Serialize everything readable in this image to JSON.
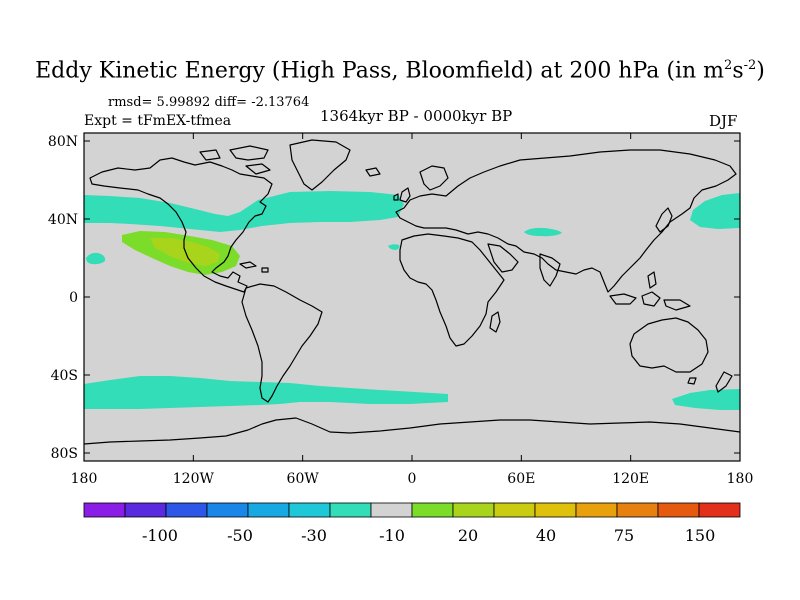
{
  "title": "Eddy Kinetic Energy (High Pass, Bloomfield) at 200 hPa (in m",
  "title_unit_m_exp": "2",
  "title_unit_s": "s",
  "title_unit_s_exp": "-2",
  "title_close": ")",
  "stats": "rmsd= 5.99892  diff= -2.13764",
  "expt": "Expt = tFmEX-tfmea",
  "period": "1364kyr BP - 0000kyr BP",
  "season": "DJF",
  "map": {
    "lat_labels": [
      "80N",
      "40N",
      "0",
      "40S",
      "80S"
    ],
    "lat_values": [
      80,
      40,
      0,
      -40,
      -80
    ],
    "lon_labels": [
      "180",
      "120W",
      "60W",
      "0",
      "60E",
      "120E",
      "180"
    ],
    "lon_values": [
      -180,
      -120,
      -60,
      0,
      60,
      120,
      180
    ],
    "background_color": "#d3d3d3",
    "anomaly_regions": [
      {
        "name": "north-pacific-jet-west",
        "level": "-10",
        "color": "#33ddb8"
      },
      {
        "name": "north-america-atlantic-jet",
        "level": "-10",
        "color": "#33ddb8"
      },
      {
        "name": "northwest-pacific-jet",
        "level": "-10",
        "color": "#33ddb8"
      },
      {
        "name": "mediterranean-patch",
        "level": "-10",
        "color": "#33ddb8"
      },
      {
        "name": "atlantic-small-patch",
        "level": "-10",
        "color": "#33ddb8"
      },
      {
        "name": "subtropical-pacific-patch",
        "level": "-10",
        "color": "#33ddb8"
      },
      {
        "name": "southern-ocean-jet",
        "level": "-10",
        "color": "#33ddb8"
      },
      {
        "name": "southern-pacific-east-jet",
        "level": "-10",
        "color": "#33ddb8"
      },
      {
        "name": "eastern-pacific-positive-outer",
        "level": "20",
        "color": "#7bdc2a"
      },
      {
        "name": "eastern-pacific-positive-core",
        "level": "30",
        "color": "#a8d41c"
      }
    ]
  },
  "colorbar": {
    "labels": [
      "-100",
      "-50",
      "-30",
      "-10",
      "20",
      "40",
      "75",
      "150"
    ],
    "colors": [
      "#8a1ee6",
      "#5a2ae0",
      "#2d57e6",
      "#1a86e8",
      "#19a9e2",
      "#1fc8d8",
      "#33ddb8",
      "#d3d3d3",
      "#7bdc2a",
      "#a8d41c",
      "#c9cc10",
      "#dfc00a",
      "#e8a10c",
      "#e6800f",
      "#e65a10",
      "#e2301a"
    ]
  }
}
